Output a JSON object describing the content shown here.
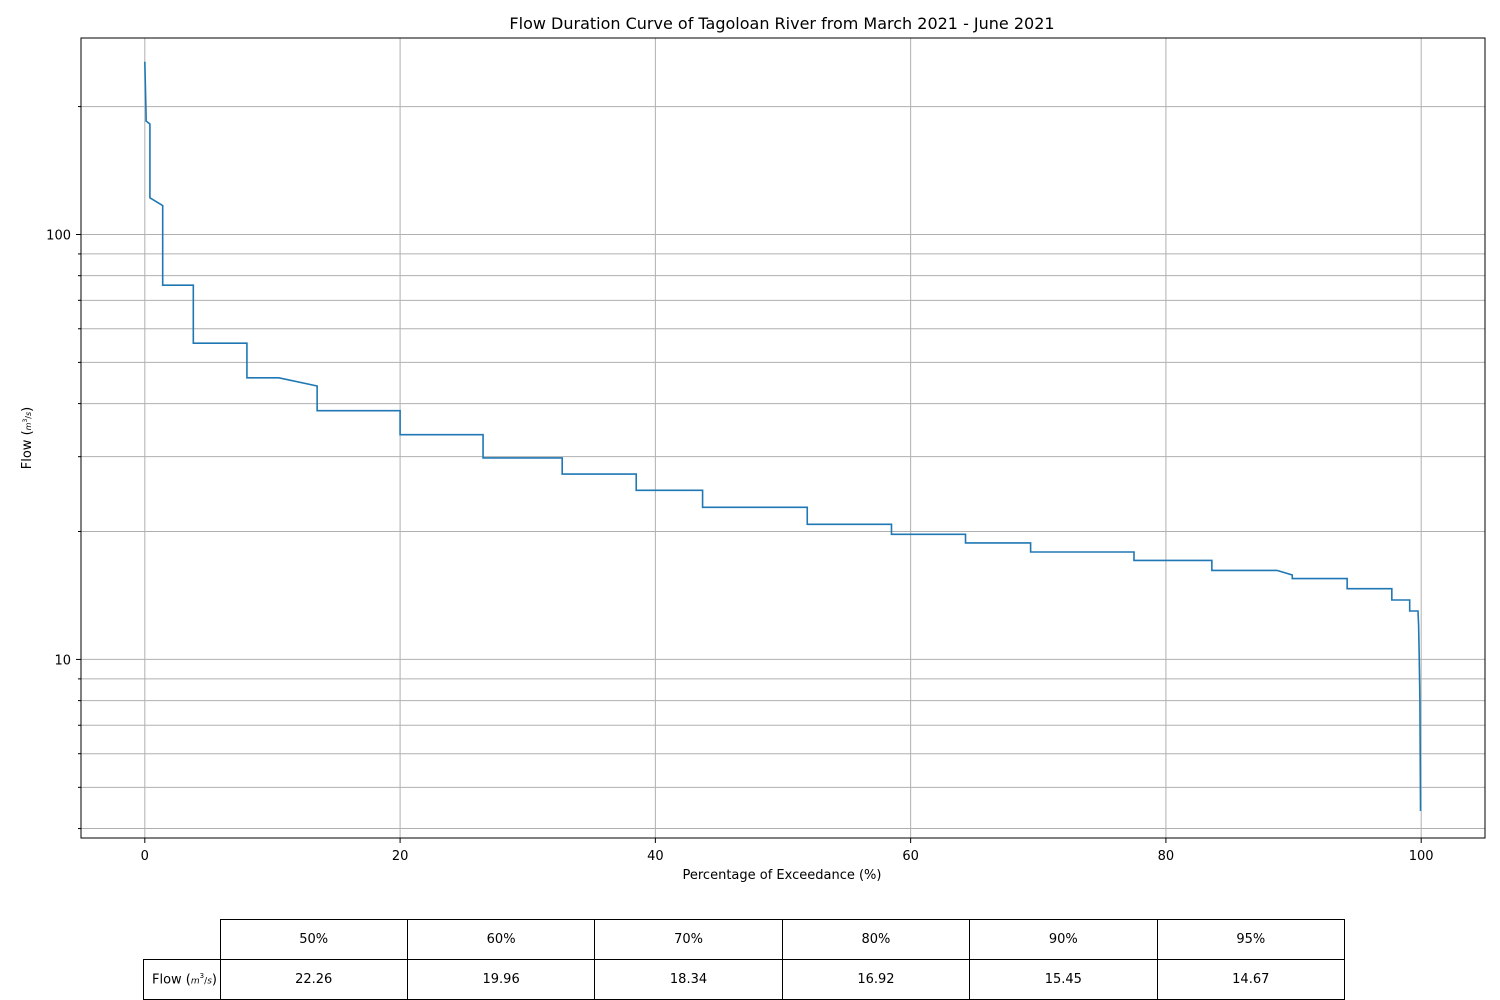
{
  "chart_data": {
    "type": "line",
    "title": "Flow Duration Curve of Tagoloan River from March 2021 - June 2021",
    "xlabel": "Percentage of Exceedance (%)",
    "ylabel_prefix": "Flow (",
    "ylabel_unit_num": "m",
    "ylabel_unit_sup": "3",
    "ylabel_unit_den": "s",
    "ylabel_suffix": ")",
    "xlim": [
      -5,
      105
    ],
    "ylim": [
      3.8,
      290
    ],
    "yscale": "log",
    "grid": true,
    "line_color": "#1f77b4",
    "xticks": [
      0,
      20,
      40,
      60,
      80,
      100
    ],
    "xtick_labels": [
      "0",
      "20",
      "40",
      "60",
      "80",
      "100"
    ],
    "yticks": [
      10,
      100
    ],
    "ytick_labels": [
      "10",
      "100"
    ],
    "y_minor_ticks": [
      4,
      5,
      6,
      7,
      8,
      9,
      20,
      30,
      40,
      50,
      60,
      70,
      80,
      90,
      200
    ],
    "series": [
      {
        "x": [
          0,
          0.1,
          0.1,
          0.4,
          0.4,
          1.4,
          1.4,
          3.8,
          3.8,
          8.0,
          8.0,
          10.5,
          13.5,
          13.5,
          20.0,
          20.0,
          26.5,
          26.5,
          32.7,
          32.7,
          38.5,
          38.5,
          43.7,
          43.7,
          51.9,
          51.9,
          58.5,
          58.5,
          64.3,
          64.3,
          69.4,
          69.4,
          77.5,
          77.5,
          83.6,
          83.6,
          88.7,
          89.9,
          89.9,
          94.2,
          94.2,
          97.7,
          97.7,
          99.1,
          99.1,
          99.75,
          99.8,
          99.85,
          99.9,
          99.95
        ],
        "y": [
          255,
          190,
          185,
          182,
          122,
          117,
          76,
          76,
          55.5,
          55.5,
          46.0,
          46.0,
          44.0,
          38.5,
          38.5,
          33.8,
          33.8,
          29.8,
          29.8,
          27.3,
          27.3,
          25.0,
          25.0,
          22.8,
          22.8,
          20.8,
          20.8,
          19.7,
          19.7,
          18.8,
          18.8,
          17.9,
          17.9,
          17.1,
          17.1,
          16.2,
          16.2,
          15.8,
          15.5,
          15.5,
          14.67,
          14.67,
          13.8,
          13.8,
          13.0,
          13.0,
          12.0,
          10.0,
          8.0,
          4.4
        ]
      }
    ]
  },
  "table": {
    "headers": [
      "50%",
      "60%",
      "70%",
      "80%",
      "90%",
      "95%"
    ],
    "row_label_prefix": "Flow (",
    "row_label_unit_num": "m",
    "row_label_unit_sup": "3",
    "row_label_unit_den": "s",
    "row_label_suffix": ")",
    "values": [
      "22.26",
      "19.96",
      "18.34",
      "16.92",
      "15.45",
      "14.67"
    ]
  }
}
